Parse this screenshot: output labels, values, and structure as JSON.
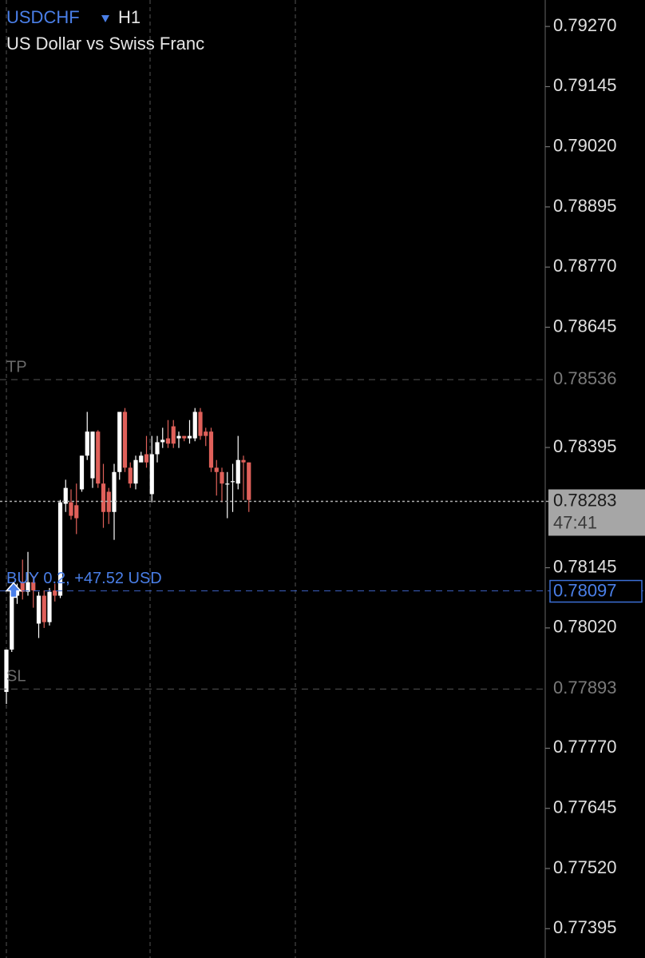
{
  "chart_data": {
    "type": "candlestick",
    "title": "USDCHF",
    "timeframe": "H1",
    "subtitle": "US Dollar vs Swiss Franc",
    "ylim": [
      0.77334,
      0.79325
    ],
    "yticks": [
      {
        "value": 0.7927,
        "label": "0.79270"
      },
      0.79145,
      {
        "value": 0.7902,
        "label": "0.79020"
      },
      0.78895,
      {
        "value": 0.7877,
        "label": "0.78770"
      },
      0.78645,
      0.78395,
      0.78145,
      {
        "value": 0.7802,
        "label": "0.78020"
      },
      {
        "value": 0.7777,
        "label": "0.77770"
      },
      0.77645,
      {
        "value": 0.7752,
        "label": "0.77520"
      },
      0.77395
    ],
    "up_color": "#ffffff",
    "down_color": "#e0605a",
    "open": [
      0.77887,
      0.77975,
      0.78087,
      0.78115,
      0.78095,
      0.78115,
      0.78029,
      0.78087,
      0.78032,
      0.78098,
      0.78087,
      0.78278,
      0.78281,
      0.78275,
      0.78308,
      0.78378,
      0.78331,
      0.78428,
      0.7832,
      0.78303,
      0.78261,
      0.78344,
      0.78469,
      0.78353,
      0.7832,
      0.78364,
      0.78381,
      0.78298,
      0.78381,
      0.78406,
      0.78414,
      0.78439,
      0.78414,
      0.78419,
      0.78414,
      0.78414,
      0.78469,
      0.78428,
      0.78428,
      0.78353,
      0.78344,
      0.7832,
      0.78323,
      0.7832,
      0.78369,
      0.78364
    ],
    "high": [
      0.77975,
      0.78103,
      0.78112,
      0.78162,
      0.78178,
      0.78128,
      0.78095,
      0.78098,
      0.78103,
      0.78112,
      0.78286,
      0.78328,
      0.78308,
      0.7832,
      0.78378,
      0.78469,
      0.78428,
      0.78431,
      0.78361,
      0.78311,
      0.78361,
      0.78469,
      0.78477,
      0.78364,
      0.78378,
      0.78386,
      0.78419,
      0.78419,
      0.78419,
      0.78436,
      0.78452,
      0.78452,
      0.78428,
      0.78419,
      0.78452,
      0.78477,
      0.78477,
      0.78436,
      0.78436,
      0.78369,
      0.78353,
      0.78344,
      0.78361,
      0.78419,
      0.78378,
      0.78364
    ],
    "low": [
      0.77862,
      0.7797,
      0.7807,
      0.78079,
      0.78087,
      0.78062,
      0.77999,
      0.7802,
      0.78025,
      0.78075,
      0.78082,
      0.78261,
      0.78245,
      0.78215,
      0.78303,
      0.78369,
      0.78311,
      0.78311,
      0.78228,
      0.78236,
      0.78203,
      0.78328,
      0.78344,
      0.78311,
      0.78308,
      0.78369,
      0.78353,
      0.78281,
      0.78364,
      0.78394,
      0.78394,
      0.78394,
      0.78394,
      0.78408,
      0.78403,
      0.78408,
      0.78411,
      0.78398,
      0.78344,
      0.78295,
      0.78281,
      0.78248,
      0.78261,
      0.78308,
      0.78286,
      0.78261
    ],
    "close": [
      0.77975,
      0.78087,
      0.78098,
      0.78095,
      0.78115,
      0.78098,
      0.78087,
      0.78032,
      0.78095,
      0.78087,
      0.78281,
      0.78311,
      0.78253,
      0.78248,
      0.78378,
      0.78428,
      0.78428,
      0.7832,
      0.78261,
      0.78261,
      0.78344,
      0.78469,
      0.78353,
      0.7832,
      0.78369,
      0.78378,
      0.78364,
      0.78381,
      0.78406,
      0.78411,
      0.78403,
      0.78403,
      0.78419,
      0.78414,
      0.78419,
      0.78469,
      0.78419,
      0.78419,
      0.78353,
      0.78344,
      0.7832,
      0.7832,
      0.78325,
      0.78369,
      0.78364,
      0.78286
    ],
    "take_profit": {
      "label": "TP",
      "value": 0.78536
    },
    "stop_loss": {
      "label": "SL",
      "value": 0.77893
    },
    "position": {
      "label": "BUY 0.2, +47.52 USD",
      "value": 0.78097
    },
    "current_price": {
      "value": 0.78283,
      "countdown": "47:41"
    }
  }
}
